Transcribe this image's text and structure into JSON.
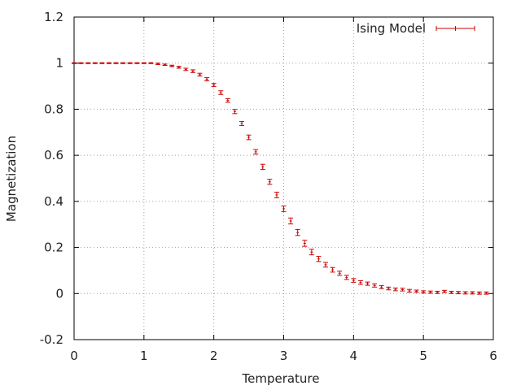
{
  "chart_data": {
    "type": "scatter",
    "title": "",
    "xlabel": "Temperature",
    "ylabel": "Magnetization",
    "xlim": [
      0,
      6
    ],
    "ylim": [
      -0.2,
      1.2
    ],
    "xticks": [
      0,
      1,
      2,
      3,
      4,
      5,
      6
    ],
    "xtick_labels": [
      "0",
      "1",
      "2",
      "3",
      "4",
      "5",
      "6"
    ],
    "yticks": [
      -0.2,
      0,
      0.2,
      0.4,
      0.6,
      0.8,
      1,
      1.2
    ],
    "ytick_labels": [
      "-0.2",
      "0",
      "0.2",
      "0.4",
      "0.6",
      "0.8",
      "1",
      "1.2"
    ],
    "grid": true,
    "legend_position": "top-right",
    "series": [
      {
        "name": "Ising Model",
        "color": "#cc0000",
        "marker": "error-bars",
        "x": [
          0,
          0.1,
          0.2,
          0.3,
          0.4,
          0.5,
          0.6,
          0.7,
          0.8,
          0.9,
          1.0,
          1.1,
          1.2,
          1.3,
          1.4,
          1.5,
          1.6,
          1.7,
          1.8,
          1.9,
          2.0,
          2.1,
          2.2,
          2.3,
          2.4,
          2.5,
          2.6,
          2.7,
          2.8,
          2.9,
          3.0,
          3.1,
          3.2,
          3.3,
          3.4,
          3.5,
          3.6,
          3.7,
          3.8,
          3.9,
          4.0,
          4.1,
          4.2,
          4.3,
          4.4,
          4.5,
          4.6,
          4.7,
          4.8,
          4.9,
          5.0,
          5.1,
          5.2,
          5.3,
          5.4,
          5.5,
          5.6,
          5.7,
          5.8,
          5.9
        ],
        "y": [
          1.0,
          1.0,
          1.0,
          1.0,
          1.0,
          1.0,
          1.0,
          1.0,
          1.0,
          1.0,
          1.0,
          1.0,
          0.997,
          0.993,
          0.988,
          0.982,
          0.973,
          0.965,
          0.95,
          0.93,
          0.905,
          0.872,
          0.838,
          0.79,
          0.738,
          0.678,
          0.615,
          0.55,
          0.485,
          0.428,
          0.368,
          0.315,
          0.265,
          0.218,
          0.18,
          0.15,
          0.125,
          0.103,
          0.088,
          0.07,
          0.057,
          0.048,
          0.043,
          0.035,
          0.028,
          0.022,
          0.018,
          0.017,
          0.012,
          0.01,
          0.007,
          0.006,
          0.005,
          0.009,
          0.005,
          0.004,
          0.003,
          0.003,
          0.002,
          0.002
        ],
        "err": [
          0.002,
          0.002,
          0.002,
          0.002,
          0.002,
          0.002,
          0.002,
          0.002,
          0.002,
          0.002,
          0.002,
          0.002,
          0.003,
          0.003,
          0.003,
          0.004,
          0.005,
          0.006,
          0.006,
          0.007,
          0.007,
          0.008,
          0.008,
          0.009,
          0.009,
          0.01,
          0.01,
          0.011,
          0.011,
          0.012,
          0.012,
          0.013,
          0.013,
          0.013,
          0.012,
          0.011,
          0.01,
          0.01,
          0.009,
          0.009,
          0.008,
          0.008,
          0.007,
          0.007,
          0.007,
          0.006,
          0.006,
          0.006,
          0.006,
          0.005,
          0.005,
          0.005,
          0.005,
          0.005,
          0.005,
          0.005,
          0.005,
          0.005,
          0.005,
          0.005
        ]
      }
    ]
  }
}
